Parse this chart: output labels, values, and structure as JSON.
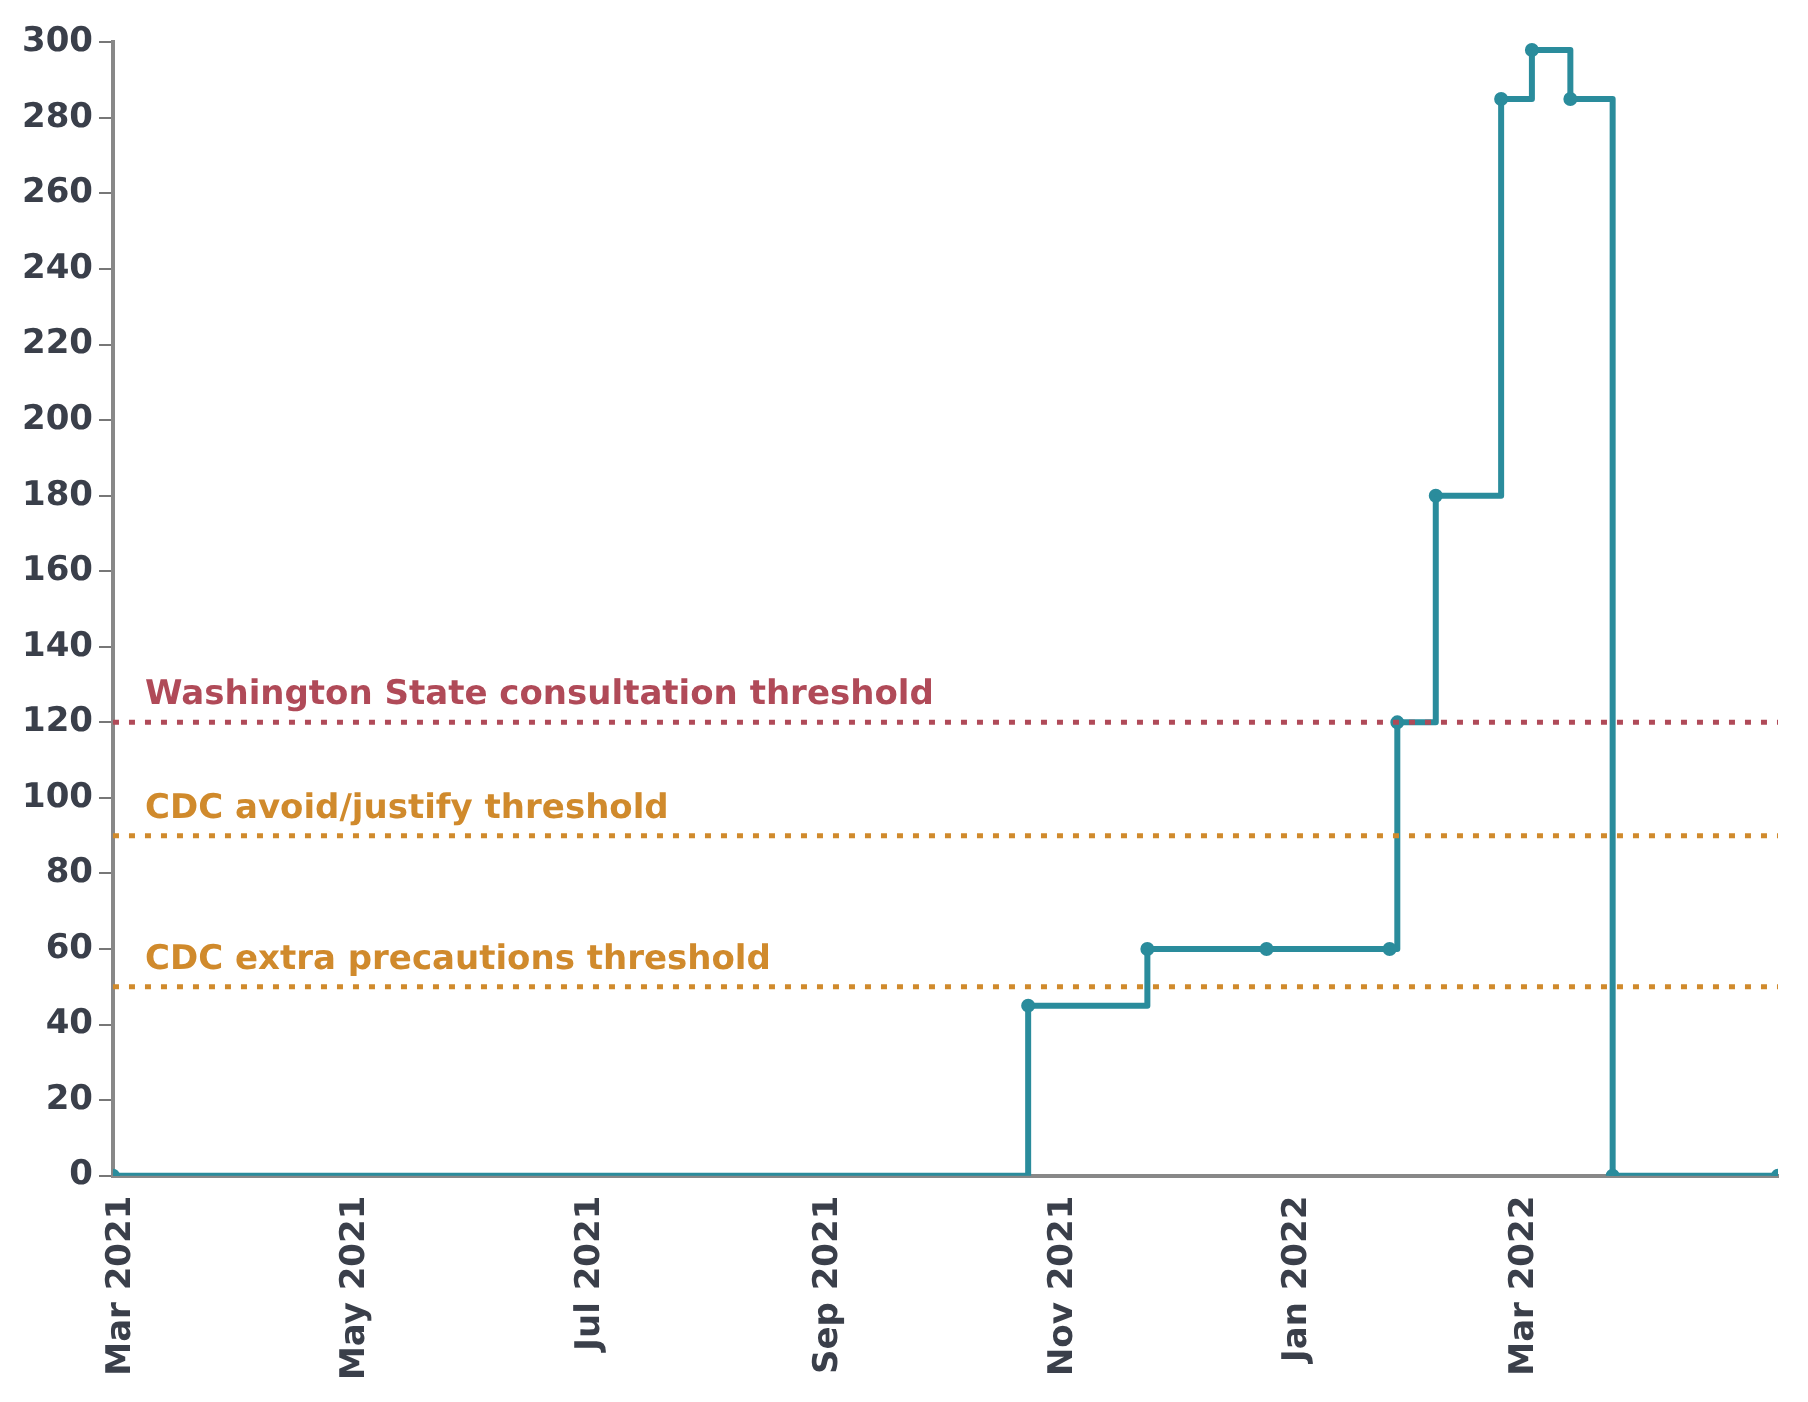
{
  "chart_data": {
    "type": "step",
    "marker": "circle",
    "grid": false,
    "legend": false,
    "x": [
      "2021-02-27",
      "2021-10-23",
      "2021-11-23",
      "2021-12-24",
      "2022-01-25",
      "2022-01-27",
      "2022-02-06",
      "2022-02-23",
      "2022-03-03",
      "2022-03-13",
      "2022-03-24",
      "2022-05-06"
    ],
    "series": [
      {
        "color": "#2a8c9c",
        "values": [
          0,
          45,
          60,
          60,
          60,
          120,
          180,
          285,
          298,
          285,
          0,
          0
        ]
      }
    ],
    "xlim": [
      "2021-02-27",
      "2022-05-06"
    ],
    "xticks": [
      {
        "value": "2021-03-01",
        "label": "Mar 2021"
      },
      {
        "value": "2021-05-01",
        "label": "May 2021"
      },
      {
        "value": "2021-07-01",
        "label": "Jul 2021"
      },
      {
        "value": "2021-09-01",
        "label": "Sep 2021"
      },
      {
        "value": "2021-11-01",
        "label": "Nov 2021"
      },
      {
        "value": "2022-01-01",
        "label": "Jan 2022"
      },
      {
        "value": "2022-03-01",
        "label": "Mar 2022"
      }
    ],
    "ylim": [
      0,
      300
    ],
    "yticks": [
      0,
      20,
      40,
      60,
      80,
      100,
      120,
      140,
      160,
      180,
      200,
      220,
      240,
      260,
      280,
      300
    ],
    "ref_lines": [
      {
        "axis": "y",
        "value": 120,
        "label": "Washington State consultation threshold",
        "color": "#b04a58",
        "line_style": "dotted"
      },
      {
        "axis": "y",
        "value": 90,
        "label": "CDC avoid/justify threshold",
        "color": "#d08a2c",
        "line_style": "dotted"
      },
      {
        "axis": "y",
        "value": 50,
        "label": "CDC extra precautions threshold",
        "color": "#d08a2c",
        "line_style": "dotted"
      }
    ]
  }
}
